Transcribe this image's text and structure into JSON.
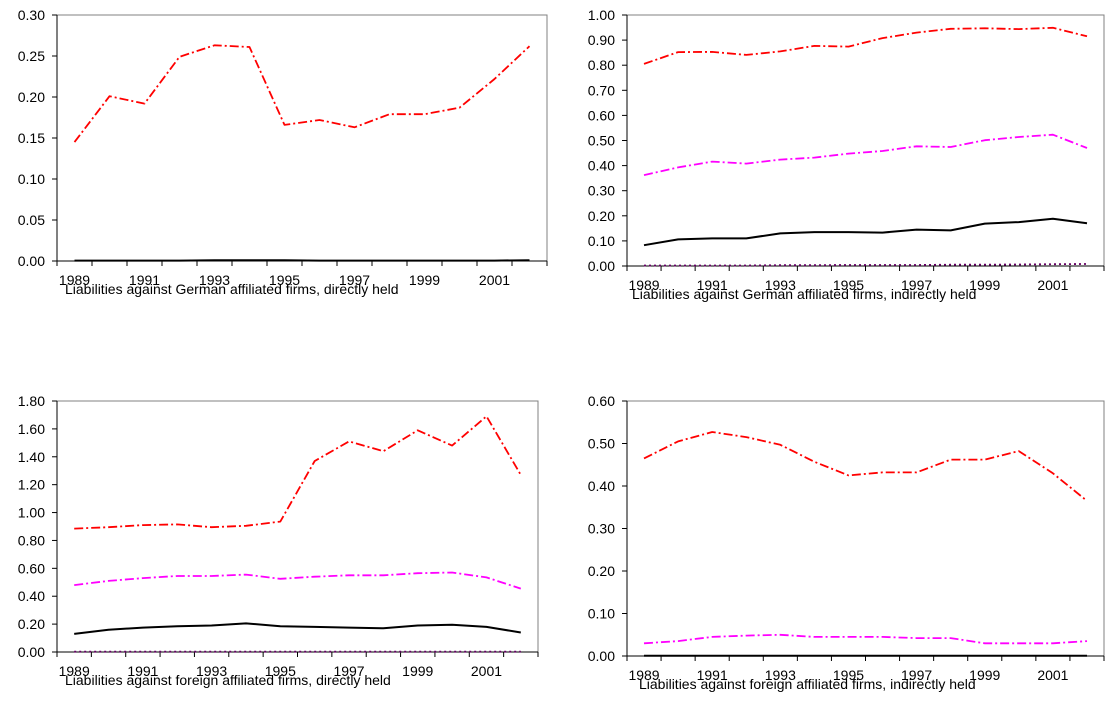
{
  "chart_data": [
    {
      "type": "line",
      "xlabel": "Liabilities against German affiliated firms, directly held",
      "ylabel": "",
      "ylim": [
        0,
        0.3
      ],
      "yticks": [
        "0.00",
        "0.05",
        "0.10",
        "0.15",
        "0.20",
        "0.25",
        "0.30"
      ],
      "categories": [
        "1989",
        "1990",
        "1991",
        "1992",
        "1993",
        "1994",
        "1995",
        "1996",
        "1997",
        "1998",
        "1999",
        "2000",
        "2001",
        "2002"
      ],
      "xtick_labels": [
        "1989",
        "1991",
        "1993",
        "1995",
        "1997",
        "1999",
        "2001"
      ],
      "grid": false,
      "series": [
        {
          "color": "#ff0000",
          "dash": "dashdot",
          "values": [
            0.145,
            0.201,
            0.192,
            0.249,
            0.263,
            0.261,
            0.166,
            0.172,
            0.163,
            0.179,
            0.179,
            0.187,
            0.222,
            0.262
          ]
        },
        {
          "color": "#000000",
          "dash": "solid",
          "values": [
            0.0005,
            0.0005,
            0.0005,
            0.0005,
            0.0008,
            0.001,
            0.0008,
            0.0005,
            0.0005,
            0.0005,
            0.0005,
            0.0005,
            0.0005,
            0.001
          ]
        }
      ]
    },
    {
      "type": "line",
      "xlabel": "Liabilities against German affiliated firms, indirectly held",
      "ylabel": "",
      "ylim": [
        0,
        1.0
      ],
      "yticks": [
        "0.00",
        "0.10",
        "0.20",
        "0.30",
        "0.40",
        "0.50",
        "0.60",
        "0.70",
        "0.80",
        "0.90",
        "1.00"
      ],
      "categories": [
        "1989",
        "1990",
        "1991",
        "1992",
        "1993",
        "1994",
        "1995",
        "1996",
        "1997",
        "1998",
        "1999",
        "2000",
        "2001",
        "2002"
      ],
      "xtick_labels": [
        "1989",
        "1991",
        "1993",
        "1995",
        "1997",
        "1999",
        "2001"
      ],
      "grid": false,
      "series": [
        {
          "color": "#ff0000",
          "dash": "dashdot",
          "values": [
            0.805,
            0.852,
            0.853,
            0.841,
            0.855,
            0.877,
            0.874,
            0.908,
            0.93,
            0.945,
            0.947,
            0.944,
            0.949,
            0.915
          ]
        },
        {
          "color": "#ff00ff",
          "dash": "dashdot",
          "values": [
            0.362,
            0.393,
            0.416,
            0.408,
            0.424,
            0.432,
            0.448,
            0.458,
            0.477,
            0.474,
            0.501,
            0.514,
            0.523,
            0.47
          ]
        },
        {
          "color": "#000000",
          "dash": "solid",
          "values": [
            0.083,
            0.106,
            0.11,
            0.11,
            0.13,
            0.135,
            0.135,
            0.133,
            0.145,
            0.142,
            0.169,
            0.175,
            0.188,
            0.17
          ]
        },
        {
          "color": "#660066",
          "dash": "dotted",
          "values": [
            0.002,
            0.002,
            0.002,
            0.002,
            0.003,
            0.003,
            0.004,
            0.004,
            0.004,
            0.005,
            0.005,
            0.006,
            0.007,
            0.008
          ]
        }
      ]
    },
    {
      "type": "line",
      "xlabel": "Liabilities against foreign affiliated firms, directly held",
      "ylabel": "",
      "ylim": [
        0,
        1.8
      ],
      "yticks": [
        "0.00",
        "0.20",
        "0.40",
        "0.60",
        "0.80",
        "1.00",
        "1.20",
        "1.40",
        "1.60",
        "1.80"
      ],
      "categories": [
        "1989",
        "1990",
        "1991",
        "1992",
        "1993",
        "1994",
        "1995",
        "1996",
        "1997",
        "1998",
        "1999",
        "2000",
        "2001",
        "2002"
      ],
      "xtick_labels": [
        "1989",
        "1991",
        "1993",
        "1995",
        "1997",
        "1999",
        "2001"
      ],
      "grid": false,
      "series": [
        {
          "color": "#ff0000",
          "dash": "dashdot",
          "values": [
            0.885,
            0.895,
            0.91,
            0.915,
            0.895,
            0.905,
            0.935,
            1.37,
            1.51,
            1.44,
            1.59,
            1.48,
            1.69,
            1.27
          ]
        },
        {
          "color": "#ff00ff",
          "dash": "dashdot",
          "values": [
            0.48,
            0.51,
            0.53,
            0.545,
            0.545,
            0.555,
            0.525,
            0.54,
            0.55,
            0.55,
            0.565,
            0.57,
            0.535,
            0.455
          ]
        },
        {
          "color": "#000000",
          "dash": "solid",
          "values": [
            0.13,
            0.16,
            0.175,
            0.185,
            0.19,
            0.205,
            0.185,
            0.18,
            0.175,
            0.17,
            0.19,
            0.195,
            0.18,
            0.14
          ]
        },
        {
          "color": "#660066",
          "dash": "dotted",
          "values": [
            0.002,
            0.002,
            0.002,
            0.002,
            0.002,
            0.002,
            0.002,
            0.002,
            0.002,
            0.002,
            0.002,
            0.002,
            0.002,
            0.002
          ]
        }
      ]
    },
    {
      "type": "line",
      "xlabel": "Liabilities against foreign affiliated firms, indirectly held",
      "ylabel": "",
      "ylim": [
        0,
        0.6
      ],
      "yticks": [
        "0.00",
        "0.10",
        "0.20",
        "0.30",
        "0.40",
        "0.50",
        "0.60"
      ],
      "categories": [
        "1989",
        "1990",
        "1991",
        "1992",
        "1993",
        "1994",
        "1995",
        "1996",
        "1997",
        "1998",
        "1999",
        "2000",
        "2001",
        "2002"
      ],
      "xtick_labels": [
        "1989",
        "1991",
        "1993",
        "1995",
        "1997",
        "1999",
        "2001"
      ],
      "grid": false,
      "series": [
        {
          "color": "#ff0000",
          "dash": "dashdot",
          "values": [
            0.465,
            0.505,
            0.527,
            0.515,
            0.497,
            0.457,
            0.425,
            0.432,
            0.432,
            0.462,
            0.462,
            0.482,
            0.43,
            0.365
          ]
        },
        {
          "color": "#ff00ff",
          "dash": "dashdot",
          "values": [
            0.03,
            0.035,
            0.045,
            0.048,
            0.05,
            0.045,
            0.045,
            0.045,
            0.042,
            0.042,
            0.03,
            0.03,
            0.03,
            0.035
          ]
        },
        {
          "color": "#000000",
          "dash": "solid",
          "values": [
            0.0005,
            0.0005,
            0.0005,
            0.0005,
            0.0005,
            0.0005,
            0.0005,
            0.0005,
            0.0005,
            0.0005,
            0.0005,
            0.0005,
            0.0005,
            0.0005
          ]
        }
      ]
    }
  ]
}
